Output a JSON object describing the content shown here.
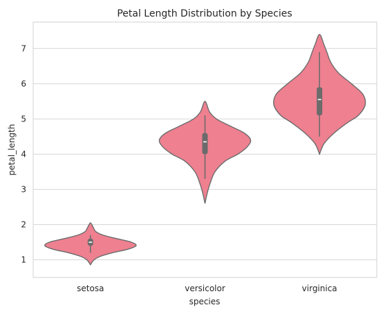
{
  "chart_data": {
    "type": "violin",
    "title": "Petal Length Distribution by Species",
    "xlabel": "species",
    "ylabel": "petal_length",
    "categories": [
      "setosa",
      "versicolor",
      "virginica"
    ],
    "ylim": [
      0.5,
      7.75
    ],
    "yticks": [
      1,
      2,
      3,
      4,
      5,
      6,
      7
    ],
    "grid": "horizontal",
    "violin_color": "#EE8090",
    "edge_color": "#6B6B6B",
    "box_color": "#6B6B6B",
    "median_color": "#FFFFFF",
    "series": [
      {
        "category": "setosa",
        "kde_range": [
          0.86,
          2.05
        ],
        "box": {
          "whisker_low": 1.2,
          "q1": 1.4,
          "median": 1.5,
          "q3": 1.6,
          "whisker_high": 1.7
        },
        "density": [
          [
            0.86,
            0.0
          ],
          [
            1.0,
            0.08
          ],
          [
            1.1,
            0.22
          ],
          [
            1.2,
            0.48
          ],
          [
            1.3,
            0.82
          ],
          [
            1.4,
            1.0
          ],
          [
            1.5,
            0.9
          ],
          [
            1.6,
            0.58
          ],
          [
            1.7,
            0.28
          ],
          [
            1.8,
            0.12
          ],
          [
            1.9,
            0.07
          ],
          [
            2.0,
            0.03
          ],
          [
            2.05,
            0.0
          ]
        ]
      },
      {
        "category": "versicolor",
        "kde_range": [
          2.6,
          5.5
        ],
        "box": {
          "whisker_low": 3.3,
          "q1": 4.0,
          "median": 4.35,
          "q3": 4.6,
          "whisker_high": 5.1
        },
        "density": [
          [
            2.6,
            0.0
          ],
          [
            2.9,
            0.05
          ],
          [
            3.2,
            0.12
          ],
          [
            3.5,
            0.22
          ],
          [
            3.8,
            0.44
          ],
          [
            4.0,
            0.72
          ],
          [
            4.2,
            0.92
          ],
          [
            4.4,
            1.0
          ],
          [
            4.6,
            0.86
          ],
          [
            4.8,
            0.55
          ],
          [
            5.0,
            0.25
          ],
          [
            5.2,
            0.1
          ],
          [
            5.5,
            0.0
          ]
        ]
      },
      {
        "category": "virginica",
        "kde_range": [
          4.0,
          7.4
        ],
        "box": {
          "whisker_low": 4.5,
          "q1": 5.1,
          "median": 5.55,
          "q3": 5.9,
          "whisker_high": 6.9
        },
        "density": [
          [
            4.0,
            0.0
          ],
          [
            4.3,
            0.1
          ],
          [
            4.6,
            0.32
          ],
          [
            4.9,
            0.62
          ],
          [
            5.1,
            0.85
          ],
          [
            5.4,
            1.0
          ],
          [
            5.7,
            0.95
          ],
          [
            6.0,
            0.7
          ],
          [
            6.3,
            0.42
          ],
          [
            6.6,
            0.25
          ],
          [
            6.9,
            0.16
          ],
          [
            7.1,
            0.1
          ],
          [
            7.4,
            0.0
          ]
        ]
      }
    ]
  }
}
